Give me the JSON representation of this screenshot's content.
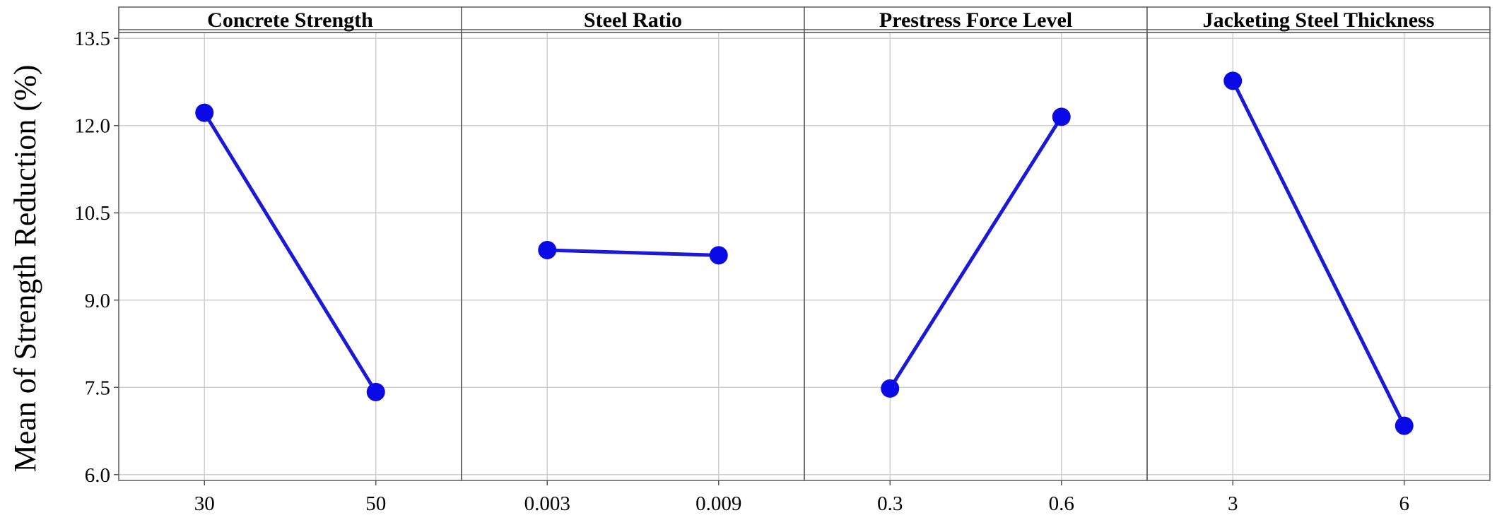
{
  "chart_data": {
    "type": "line",
    "ylabel": "Mean of Strength Reduction (%)",
    "ylim": [
      5.9,
      13.6
    ],
    "y_ticks": [
      "6.0",
      "7.5",
      "9.0",
      "10.5",
      "12.0",
      "13.5"
    ],
    "y_tick_values": [
      6.0,
      7.5,
      9.0,
      10.5,
      12.0,
      13.5
    ],
    "grid": true,
    "marker_color": "#0a0ae6",
    "line_color": "#1a1ad6",
    "panels": [
      {
        "title": "Concrete Strength",
        "categories": [
          "30",
          "50"
        ],
        "values": [
          12.22,
          7.42
        ]
      },
      {
        "title": "Steel Ratio",
        "categories": [
          "0.003",
          "0.009"
        ],
        "values": [
          9.86,
          9.77
        ]
      },
      {
        "title": "Prestress Force Level",
        "categories": [
          "0.3",
          "0.6"
        ],
        "values": [
          7.48,
          12.15
        ]
      },
      {
        "title": "Jacketing Steel Thickness",
        "categories": [
          "3",
          "6"
        ],
        "values": [
          12.77,
          6.84
        ]
      }
    ]
  }
}
